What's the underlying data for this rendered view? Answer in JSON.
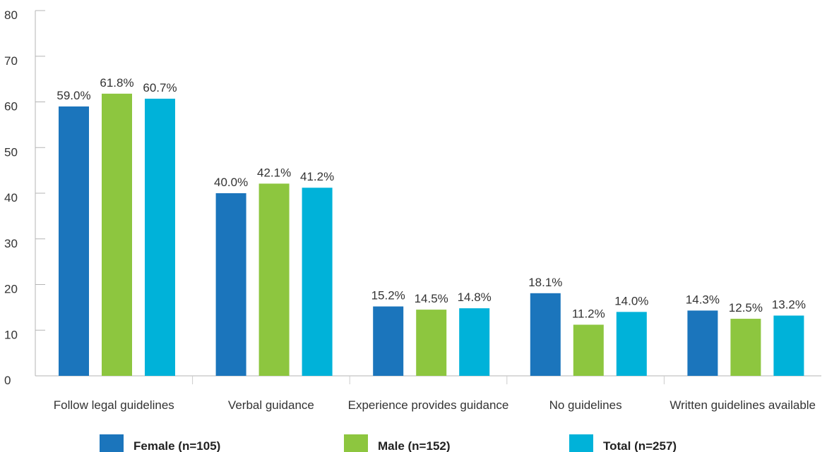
{
  "chart_data": {
    "type": "bar",
    "title": "",
    "xlabel": "",
    "ylabel": "",
    "ylim": [
      0,
      80
    ],
    "yticks": [
      "0",
      "10",
      "20",
      "30",
      "40",
      "50",
      "60",
      "70",
      "80"
    ],
    "grid": false,
    "legend_position": "bottom",
    "categories": [
      "Follow legal guidelines",
      "Verbal guidance",
      "Experience provides guidance",
      "No guidelines",
      "Written guidelines available"
    ],
    "series": [
      {
        "name": "Female (n=105)",
        "color": "#1b75bc",
        "values": [
          59.0,
          40.0,
          15.2,
          18.1,
          14.3
        ],
        "labels": [
          "59.0%",
          "40.0%",
          "15.2%",
          "18.1%",
          "14.3%"
        ]
      },
      {
        "name": "Male (n=152)",
        "color": "#8dc63f",
        "values": [
          61.8,
          42.1,
          14.5,
          11.2,
          12.5
        ],
        "labels": [
          "61.8%",
          "42.1%",
          "14.5%",
          "11.2%",
          "12.5%"
        ]
      },
      {
        "name": "Total (n=257)",
        "color": "#00b2d9",
        "values": [
          60.7,
          41.2,
          14.8,
          14.0,
          13.2
        ],
        "labels": [
          "60.7%",
          "41.2%",
          "14.8%",
          "14.0%",
          "13.2%"
        ]
      }
    ]
  }
}
